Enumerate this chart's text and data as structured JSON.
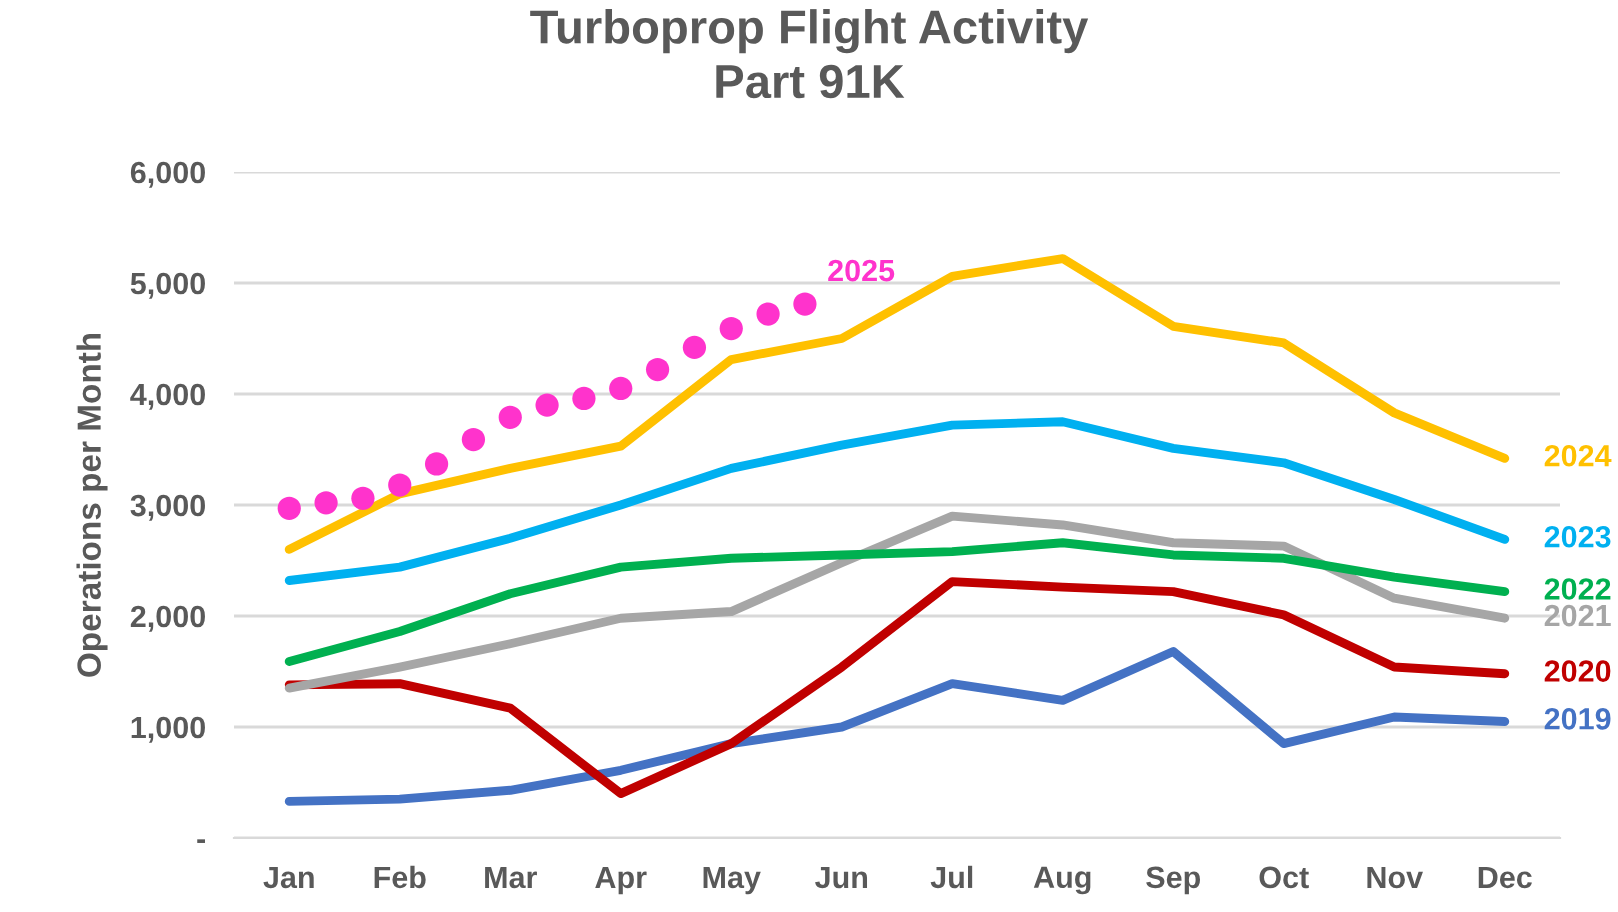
{
  "chart_data": {
    "type": "line",
    "title": "Turboprop Flight Activity\nPart 91K",
    "ylabel": "Operations per Month",
    "categories": [
      "Jan",
      null,
      null,
      "Feb",
      null,
      null,
      "Mar",
      null,
      null,
      "Apr",
      null,
      null,
      "May",
      null,
      null,
      "Jun",
      null,
      null,
      "Jul",
      null,
      null,
      "Aug",
      null,
      null,
      "Sep",
      null,
      null,
      "Oct",
      null,
      null,
      "Nov",
      null,
      null,
      "Dec"
    ],
    "ylim": [
      0,
      6000
    ],
    "yticks": [
      {
        "value": 0,
        "label": "-"
      },
      {
        "value": 1000,
        "label": "1,000"
      },
      {
        "value": 2000,
        "label": "2,000"
      },
      {
        "value": 3000,
        "label": "3,000"
      },
      {
        "value": 4000,
        "label": "4,000"
      },
      {
        "value": 5000,
        "label": "5,000"
      },
      {
        "value": 6000,
        "label": "6,000"
      }
    ],
    "grid": "y",
    "series": [
      {
        "name": "2019",
        "color": "#4472c4",
        "values": [
          330,
          null,
          null,
          350,
          null,
          null,
          430,
          null,
          null,
          610,
          null,
          null,
          850,
          null,
          null,
          1000,
          null,
          null,
          1390,
          null,
          null,
          1240,
          null,
          null,
          1680,
          null,
          null,
          850,
          null,
          null,
          1090,
          null,
          null,
          1050
        ]
      },
      {
        "name": "2020",
        "color": "#c00000",
        "values": [
          1380,
          null,
          null,
          1390,
          null,
          null,
          1170,
          null,
          null,
          400,
          null,
          null,
          850,
          null,
          null,
          1540,
          null,
          null,
          2310,
          null,
          null,
          2260,
          null,
          null,
          2220,
          null,
          null,
          2010,
          null,
          null,
          1540,
          null,
          null,
          1480
        ]
      },
      {
        "name": "2021",
        "color": "#a6a6a6",
        "values": [
          1350,
          null,
          null,
          1540,
          null,
          null,
          1750,
          null,
          null,
          1980,
          null,
          null,
          2040,
          null,
          null,
          2480,
          null,
          null,
          2900,
          null,
          null,
          2820,
          null,
          null,
          2660,
          null,
          null,
          2630,
          null,
          null,
          2160,
          null,
          null,
          1980
        ]
      },
      {
        "name": "2022",
        "color": "#00b050",
        "values": [
          1590,
          null,
          null,
          1860,
          null,
          null,
          2200,
          null,
          null,
          2440,
          null,
          null,
          2520,
          null,
          null,
          2550,
          null,
          null,
          2580,
          null,
          null,
          2660,
          null,
          null,
          2550,
          null,
          null,
          2520,
          null,
          null,
          2350,
          null,
          null,
          2220
        ]
      },
      {
        "name": "2023",
        "color": "#00b0f0",
        "values": [
          2320,
          null,
          null,
          2440,
          null,
          null,
          2700,
          null,
          null,
          3000,
          null,
          null,
          3330,
          null,
          null,
          3540,
          null,
          null,
          3720,
          null,
          null,
          3750,
          null,
          null,
          3510,
          null,
          null,
          3380,
          null,
          null,
          3050,
          null,
          null,
          2690
        ]
      },
      {
        "name": "2024",
        "color": "#ffc000",
        "values": [
          2600,
          null,
          null,
          3100,
          null,
          null,
          3330,
          null,
          null,
          3530,
          null,
          null,
          4310,
          null,
          null,
          4500,
          null,
          null,
          5060,
          null,
          null,
          5220,
          null,
          null,
          4610,
          null,
          null,
          4460,
          null,
          null,
          3830,
          null,
          null,
          3420
        ]
      },
      {
        "name": "2025",
        "color": "#ff33cc",
        "type": "scatter",
        "marker": "circle",
        "values": [
          2970,
          3020,
          3060,
          3180,
          3370,
          3590,
          3790,
          3900,
          3960,
          4050,
          4220,
          4420,
          4590,
          4720,
          4810,
          null,
          null,
          null,
          null,
          null,
          null,
          null,
          null,
          null,
          null,
          null,
          null,
          null,
          null,
          null,
          null,
          null,
          null,
          null
        ]
      }
    ]
  }
}
